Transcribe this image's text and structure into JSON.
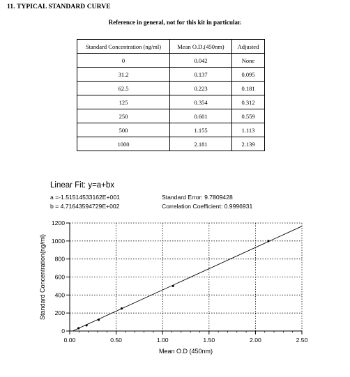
{
  "section_title": "11. TYPICAL STANDARD CURVE",
  "subtitle": "Reference in general, not for this kit in particular.",
  "table": {
    "headers": [
      "Standard Concentration (ng/ml)",
      "Mean O.D.(450nm)",
      "Adjusted"
    ],
    "rows": [
      [
        "0",
        "0.042",
        "None"
      ],
      [
        "31.2",
        "0.137",
        "0.095"
      ],
      [
        "62.5",
        "0.223",
        "0.181"
      ],
      [
        "125",
        "0.354",
        "0.312"
      ],
      [
        "250",
        "0.601",
        "0.559"
      ],
      [
        "500",
        "1.155",
        "1.113"
      ],
      [
        "1000",
        "2.181",
        "2.139"
      ]
    ]
  },
  "fit": {
    "title": "Linear Fit: y=a+bx",
    "a": "a =-1.51514533162E+001",
    "b": "b = 4.71643594729E+002",
    "std_error": "Standard Error: 9.7809428",
    "corr": "Correlation Coefficient: 0.9996931"
  },
  "chart_data": {
    "type": "scatter",
    "title": "",
    "xlabel": "Mean O.D (450nm)",
    "ylabel": "Standard Concentration(ng/ml)",
    "xlim": [
      0,
      2.5
    ],
    "ylim": [
      0,
      1200
    ],
    "x_ticks": [
      0,
      0.5,
      1.0,
      1.5,
      2.0,
      2.5
    ],
    "x_tick_labels": [
      "0.00",
      "0.50",
      "1.00",
      "1.50",
      "2.00",
      "2.50"
    ],
    "y_ticks": [
      0,
      200,
      400,
      600,
      800,
      1000,
      1200
    ],
    "y_tick_labels": [
      "0",
      "200",
      "400",
      "600",
      "800",
      "1000",
      "1200"
    ],
    "grid": true,
    "fit_line": {
      "intercept": -15.1514533162,
      "slope": 471.643594729
    },
    "points": {
      "x": [
        0.095,
        0.181,
        0.312,
        0.559,
        1.113,
        2.139
      ],
      "y": [
        31.2,
        62.5,
        125,
        250,
        500,
        1000
      ]
    },
    "colors": {
      "line": "#000000",
      "grid": "#000000",
      "marker": "#000000"
    }
  }
}
